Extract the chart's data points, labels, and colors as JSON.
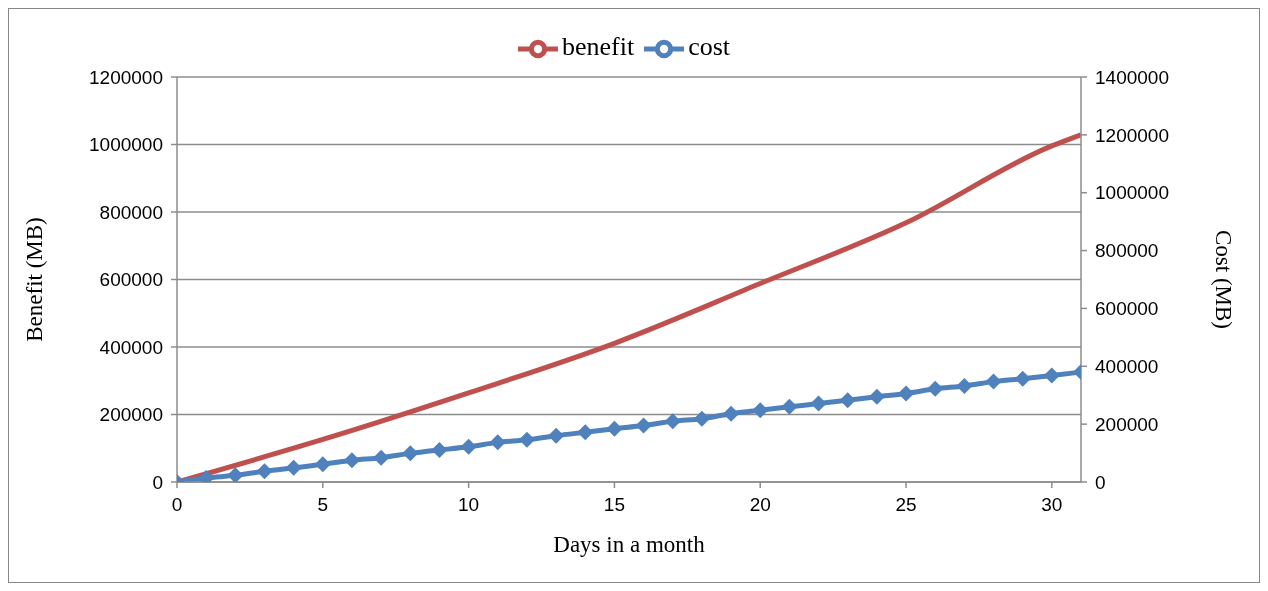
{
  "chart_data": {
    "type": "line",
    "xlabel": "Days in a month",
    "ylabel": "Benefit (MB)",
    "y2label": "Cost (MB)",
    "xlim": [
      0,
      31
    ],
    "xticks": [
      0,
      5,
      10,
      15,
      20,
      25,
      30
    ],
    "ylim": [
      0,
      1200000
    ],
    "yticks": [
      0,
      200000,
      400000,
      600000,
      800000,
      1000000,
      1200000
    ],
    "y2lim": [
      0,
      1400000
    ],
    "y2ticks": [
      0,
      200000,
      400000,
      600000,
      800000,
      1000000,
      1200000,
      1400000
    ],
    "grid": "y",
    "legend": "top",
    "series": [
      {
        "name": "benefit",
        "color": "#c0504d",
        "marker": "none",
        "x": [
          0,
          5,
          10,
          15,
          20,
          25,
          30,
          31
        ],
        "values": [
          0,
          126000,
          264000,
          411000,
          588000,
          768000,
          996000,
          1029000
        ]
      },
      {
        "name": "cost",
        "color": "#4f81bd",
        "marker": "diamond",
        "axis": "y2",
        "x": [
          0,
          1,
          2,
          3,
          4,
          5,
          6,
          7,
          8,
          9,
          10,
          11,
          12,
          13,
          14,
          15,
          16,
          17,
          18,
          19,
          20,
          21,
          22,
          23,
          24,
          25,
          26,
          27,
          28,
          29,
          30,
          31
        ],
        "values": [
          0,
          14000,
          23000,
          37000,
          49000,
          61000,
          75000,
          84000,
          99000,
          111000,
          122000,
          137000,
          146000,
          160000,
          172000,
          184000,
          195000,
          210000,
          219000,
          236000,
          248000,
          260000,
          271000,
          283000,
          295000,
          306000,
          322000,
          332000,
          347000,
          357000,
          368000,
          380000
        ]
      }
    ]
  }
}
